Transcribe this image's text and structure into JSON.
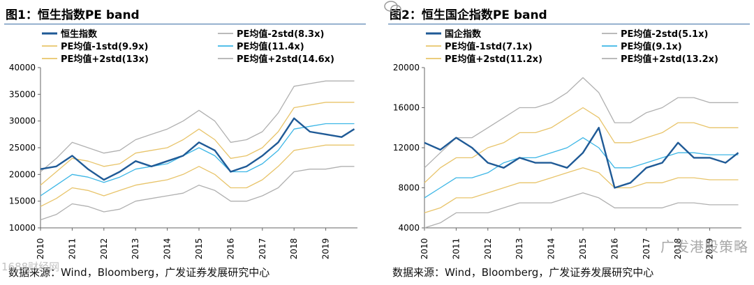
{
  "chart_data": [
    {
      "type": "line",
      "title": "图1：恒生指数PE band",
      "x_ticks": [
        "2010",
        "2011",
        "2012",
        "2013",
        "2014",
        "2015",
        "2016",
        "2017",
        "2018",
        "2019"
      ],
      "ylim": [
        10000,
        40000
      ],
      "y_ticks": [
        "40000",
        "35000",
        "30000",
        "25000",
        "20000",
        "15000",
        "10000"
      ],
      "y_tick_values": [
        40000,
        35000,
        30000,
        25000,
        20000,
        15000,
        10000
      ],
      "legend": [
        {
          "name": "恒生指数",
          "color": "#1f5a96"
        },
        {
          "name": "PE均值-2std(8.3x)",
          "color": "#b0b0b0"
        },
        {
          "name": "PE均值-1std(9.9x)",
          "color": "#e8c46a"
        },
        {
          "name": "PE均值(11.4x)",
          "color": "#3cb6e6"
        },
        {
          "name": "PE均值+2std(13x)",
          "color": "#e8c46a"
        },
        {
          "name": "PE均值+2std(14.6x)",
          "color": "#b0b0b0"
        }
      ],
      "x_years": [
        2010.0,
        2010.5,
        2011.0,
        2011.5,
        2012.0,
        2012.5,
        2013.0,
        2013.5,
        2014.0,
        2014.5,
        2015.0,
        2015.5,
        2016.0,
        2016.5,
        2017.0,
        2017.5,
        2018.0,
        2018.5,
        2019.0,
        2019.5,
        2019.9
      ],
      "series": [
        {
          "name": "恒生指数",
          "color": "#1f5a96",
          "width": 2.4,
          "values": [
            21000,
            21500,
            23500,
            21000,
            19000,
            20500,
            22500,
            21500,
            22500,
            23500,
            26000,
            24500,
            20500,
            21500,
            23500,
            26000,
            30500,
            28000,
            27500,
            27000,
            28500
          ]
        },
        {
          "name": "PE均值-2std(8.3x)",
          "color": "#b0b0b0",
          "width": 1.3,
          "values": [
            11500,
            12500,
            14500,
            14000,
            13000,
            13500,
            15000,
            15500,
            16000,
            16500,
            18000,
            17000,
            15000,
            15000,
            16000,
            17500,
            20500,
            21000,
            21000,
            21500,
            21500
          ]
        },
        {
          "name": "PE均值-1std(9.9x)",
          "color": "#e8c46a",
          "width": 1.3,
          "values": [
            14000,
            15500,
            17500,
            17000,
            16000,
            17000,
            18000,
            18500,
            19000,
            20000,
            21500,
            20000,
            17500,
            17500,
            19000,
            21500,
            24500,
            25000,
            25500,
            25500,
            25500
          ]
        },
        {
          "name": "PE均值(11.4x)",
          "color": "#3cb6e6",
          "width": 1.3,
          "values": [
            16000,
            18000,
            20000,
            19500,
            18500,
            19500,
            21000,
            21500,
            22000,
            23500,
            25000,
            23500,
            20500,
            20500,
            22000,
            24500,
            28500,
            29000,
            29500,
            29500,
            29500
          ]
        },
        {
          "name": "PE均值+2std(13x)",
          "color": "#e8c46a",
          "width": 1.3,
          "values": [
            18000,
            20500,
            23000,
            22500,
            21500,
            22000,
            24000,
            24500,
            25000,
            26500,
            28500,
            26500,
            23000,
            23500,
            25000,
            28000,
            32500,
            33000,
            33500,
            33500,
            33500
          ]
        },
        {
          "name": "PE均值+2std(14.6x)",
          "color": "#b0b0b0",
          "width": 1.3,
          "values": [
            20500,
            23000,
            26000,
            25000,
            24000,
            24500,
            26500,
            27500,
            28500,
            30000,
            32000,
            30000,
            26000,
            26500,
            28000,
            31500,
            36500,
            37000,
            37500,
            37500,
            37500
          ]
        }
      ]
    },
    {
      "type": "line",
      "title": "图2：恒生国企指数PE band",
      "x_ticks": [
        "2010",
        "2011",
        "2012",
        "2013",
        "2014",
        "2015",
        "2016",
        "2017",
        "2018",
        "2019"
      ],
      "ylim": [
        4000,
        20000
      ],
      "y_ticks": [
        "20000",
        "16000",
        "12000",
        "8000",
        "4000"
      ],
      "y_tick_values": [
        20000,
        16000,
        12000,
        8000,
        4000
      ],
      "legend": [
        {
          "name": "国企指数",
          "color": "#1f5a96"
        },
        {
          "name": "PE均值-2std(5.1x)",
          "color": "#b0b0b0"
        },
        {
          "name": "PE均值-1std(7.1x)",
          "color": "#e8c46a"
        },
        {
          "name": "PE均值(9.1x)",
          "color": "#3cb6e6"
        },
        {
          "name": "PE均值+2std(11.2x)",
          "color": "#e8c46a"
        },
        {
          "name": "PE均值+2std(13.2x)",
          "color": "#b0b0b0"
        }
      ],
      "x_years": [
        2010.0,
        2010.5,
        2011.0,
        2011.5,
        2012.0,
        2012.5,
        2013.0,
        2013.5,
        2014.0,
        2014.5,
        2015.0,
        2015.5,
        2016.0,
        2016.5,
        2017.0,
        2017.5,
        2018.0,
        2018.5,
        2019.0,
        2019.5,
        2019.9
      ],
      "series": [
        {
          "name": "国企指数",
          "color": "#1f5a96",
          "width": 2.4,
          "values": [
            12500,
            11800,
            13000,
            12000,
            10500,
            10000,
            11000,
            10500,
            10500,
            10000,
            11500,
            14000,
            8000,
            8500,
            10000,
            10500,
            12500,
            11000,
            11000,
            10500,
            11500
          ]
        },
        {
          "name": "PE均值-2std(5.1x)",
          "color": "#b0b0b0",
          "width": 1.3,
          "values": [
            4000,
            4500,
            5500,
            5500,
            5500,
            6000,
            6500,
            6500,
            6500,
            7000,
            7500,
            7000,
            6000,
            6000,
            6000,
            6000,
            6500,
            6500,
            6300,
            6300,
            6300
          ]
        },
        {
          "name": "PE均值-1std(7.1x)",
          "color": "#e8c46a",
          "width": 1.3,
          "values": [
            5500,
            6000,
            7000,
            7000,
            7500,
            8000,
            8500,
            8500,
            9000,
            9500,
            10000,
            9500,
            8000,
            8000,
            8500,
            8500,
            9000,
            9000,
            8800,
            8800,
            8800
          ]
        },
        {
          "name": "PE均值(9.1x)",
          "color": "#3cb6e6",
          "width": 1.3,
          "values": [
            7000,
            8000,
            9000,
            9000,
            9500,
            10500,
            11000,
            11000,
            11500,
            12000,
            13000,
            12000,
            10000,
            10000,
            10500,
            11000,
            11500,
            11500,
            11300,
            11300,
            11300
          ]
        },
        {
          "name": "PE均值+2std(11.2x)",
          "color": "#e8c46a",
          "width": 1.3,
          "values": [
            8500,
            10000,
            11000,
            11000,
            12000,
            12500,
            13500,
            13500,
            14000,
            15000,
            16000,
            15000,
            12500,
            12500,
            13000,
            13500,
            14500,
            14500,
            14000,
            14000,
            14000
          ]
        },
        {
          "name": "PE均值+2std(13.2x)",
          "color": "#b0b0b0",
          "width": 1.3,
          "values": [
            10000,
            11500,
            13000,
            13000,
            14000,
            15000,
            16000,
            16000,
            16500,
            17500,
            19000,
            17500,
            14500,
            14500,
            15500,
            16000,
            17000,
            17000,
            16500,
            16500,
            16500
          ]
        }
      ]
    }
  ],
  "sources": [
    "数据来源：Wind，Bloomberg，广发证券发展研究中心",
    "数据来源：Wind，Bloomberg，广发证券发展研究中心"
  ],
  "watermarks": {
    "left": "1688财经网",
    "right": "广发港股策略"
  }
}
